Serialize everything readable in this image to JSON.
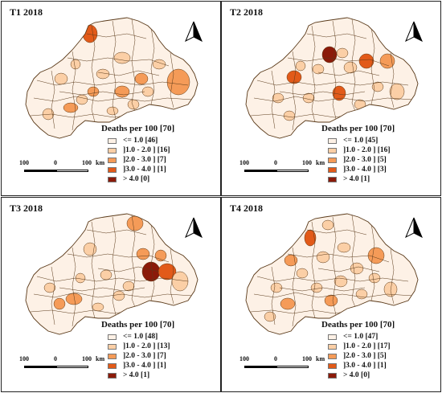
{
  "panels": [
    {
      "title": "T1 2018",
      "legend_title": "Deaths per 100 [70]",
      "legend": [
        "<= 1.0  [46]",
        "]1.0 - 2.0 ] [16]",
        "]2.0 - 3.0 ] [7]",
        "]3.0 - 4.0 ] [1]",
        "> 4.0  [0]"
      ]
    },
    {
      "title": "T2  2018",
      "legend_title": "Deaths per 100 [70]",
      "legend": [
        "<= 1.0  [45]",
        "]1.0 - 2.0 ] [16]",
        "]2.0 - 3.0 ] [5]",
        "]3.0 - 4.0 ] [3]",
        "> 4.0  [1]"
      ]
    },
    {
      "title": "T3  2018",
      "legend_title": "Deaths per 100 [70]",
      "legend": [
        "<= 1.0  [48]",
        "]1.0 - 2.0 ] [13]",
        "]2.0 - 3.0 ] [7]",
        "]3.0 - 4.0 ] [1]",
        "> 4.0  [1]"
      ]
    },
    {
      "title": "T4  2018",
      "legend_title": "Deaths per 100 [70]",
      "legend": [
        "<= 1.0  [47]",
        "]1.0 - 2.0 ] [17]",
        "]2.0 - 3.0 ] [5]",
        "]3.0 - 4.0 ] [1]",
        "> 4.0  [0]"
      ]
    }
  ],
  "scale": {
    "left": "100",
    "mid": "0",
    "right": "100",
    "unit": "km"
  },
  "legend_colors": [
    "#fdf1e6",
    "#fbcfa6",
    "#f59b58",
    "#e25a19",
    "#8b1a09"
  ],
  "border_color": "#5a3a1a"
}
